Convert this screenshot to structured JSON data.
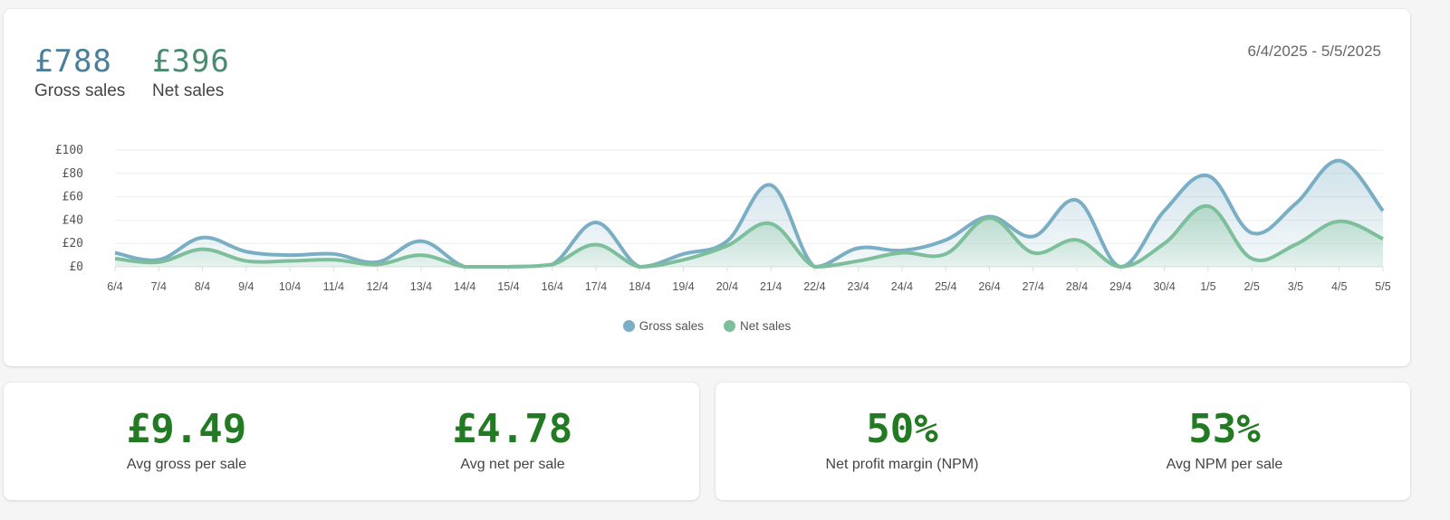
{
  "summary": {
    "gross": {
      "value": "£788",
      "label": "Gross sales"
    },
    "net": {
      "value": "£396",
      "label": "Net sales"
    },
    "date_range": "6/4/2025 - 5/5/2025"
  },
  "colors": {
    "gross": "#7aaec4",
    "net": "#7dbf9a",
    "gross_text": "#4a7e99",
    "net_text": "#4a8a6e",
    "stat_green": "#227a22"
  },
  "legend": [
    {
      "label": "Gross sales",
      "color": "#7aaec4"
    },
    {
      "label": "Net sales",
      "color": "#7dbf9a"
    }
  ],
  "stats_left": [
    {
      "value": "£9.49",
      "label": "Avg gross per sale"
    },
    {
      "value": "£4.78",
      "label": "Avg net per sale"
    }
  ],
  "stats_right": [
    {
      "value": "50%",
      "label": "Net profit margin (NPM)"
    },
    {
      "value": "53%",
      "label": "Avg NPM per sale"
    }
  ],
  "chart_data": {
    "type": "area",
    "title": "",
    "xlabel": "",
    "ylabel": "",
    "ylim": [
      0,
      100
    ],
    "yticks": [
      "£0",
      "£20",
      "£40",
      "£60",
      "£80",
      "£100"
    ],
    "grid": true,
    "legend_position": "bottom",
    "categories": [
      "6/4",
      "7/4",
      "8/4",
      "9/4",
      "10/4",
      "11/4",
      "12/4",
      "13/4",
      "14/4",
      "15/4",
      "16/4",
      "17/4",
      "18/4",
      "19/4",
      "20/4",
      "21/4",
      "22/4",
      "23/4",
      "24/4",
      "25/4",
      "26/4",
      "27/4",
      "28/4",
      "29/4",
      "30/4",
      "1/5",
      "2/5",
      "3/5",
      "4/5",
      "5/5"
    ],
    "series": [
      {
        "name": "Gross sales",
        "values": [
          12,
          6,
          25,
          13,
          10,
          11,
          4,
          22,
          0,
          0,
          2,
          38,
          0,
          11,
          22,
          70,
          0,
          16,
          14,
          23,
          43,
          26,
          57,
          0,
          48,
          78,
          29,
          54,
          91,
          48
        ]
      },
      {
        "name": "Net sales",
        "values": [
          7,
          4,
          15,
          5,
          5,
          6,
          2,
          10,
          0,
          0,
          2,
          19,
          0,
          6,
          18,
          37,
          0,
          5,
          12,
          11,
          42,
          12,
          23,
          0,
          20,
          52,
          7,
          19,
          39,
          24
        ]
      }
    ]
  }
}
